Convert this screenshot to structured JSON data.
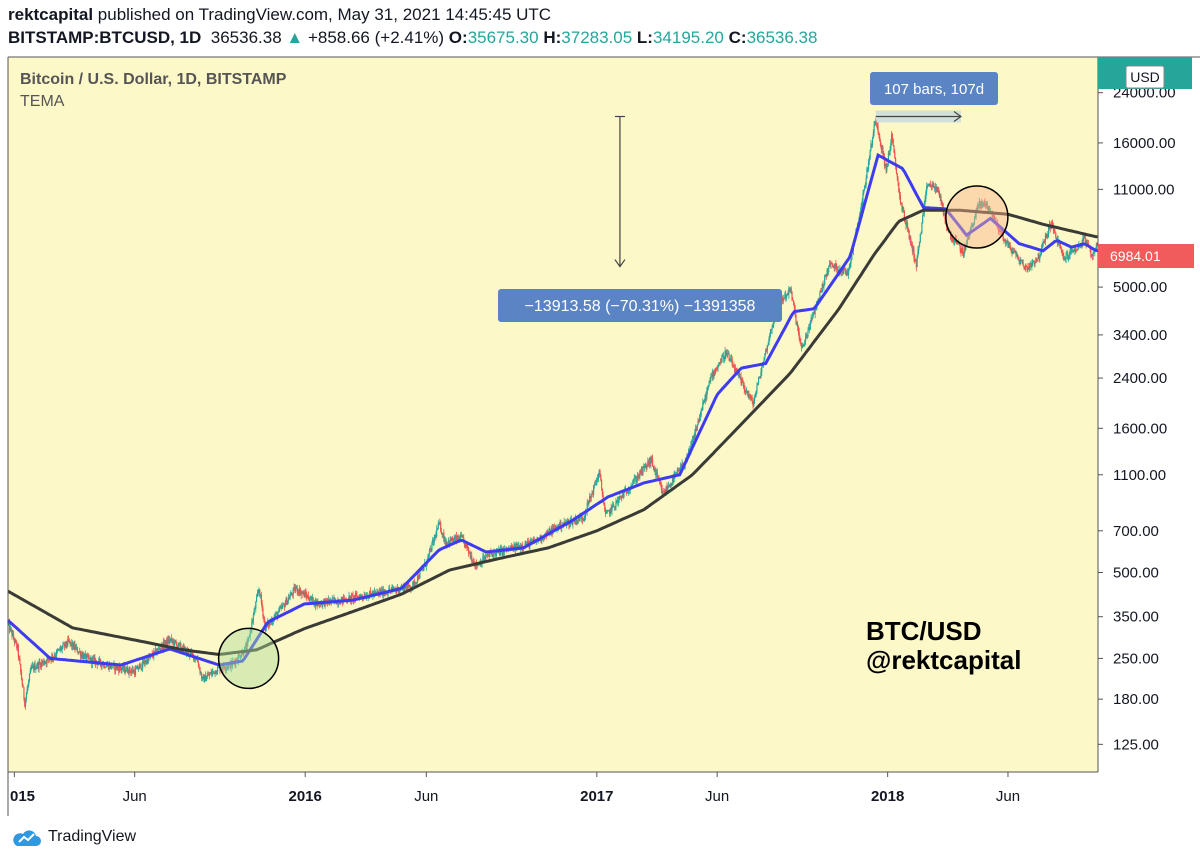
{
  "header": {
    "publisher": "rektcapital",
    "published_text": "published on TradingView.com, May 31, 2021 14:45:45 UTC",
    "symbol": "BITSTAMP:BTCUSD, 1D",
    "last": "36536.38",
    "change_arrow": "▲",
    "change": "+858.66 (+2.41%)",
    "o_label": "O:",
    "o_value": "35675.30",
    "h_label": "H:",
    "h_value": "37283.05",
    "l_label": "L:",
    "l_value": "34195.20",
    "c_label": "C:",
    "c_value": "36536.38"
  },
  "legend": {
    "title": "Bitcoin / U.S. Dollar, 1D, BITSTAMP",
    "indicator": "TEMA"
  },
  "overlay": {
    "line1": "BTC/USD",
    "line2": "@rektcapital"
  },
  "measure": {
    "bars_label": "107 bars, 107d",
    "drop_label": "−13913.58 (−70.31%) −1391358"
  },
  "price_badges": {
    "current": "6984.01",
    "currency": "USD"
  },
  "footer": {
    "brand": "TradingView"
  },
  "colors": {
    "background": "#fcf8c8",
    "up": "#26a69a",
    "down": "#ef5350",
    "tema_fast": "#3d3cf0",
    "tema_slow": "#3a3a36",
    "label_bg": "#5b84c4",
    "badge_red": "#f15b5b",
    "badge_green": "#26a69a"
  },
  "chart_data": {
    "type": "candlestick",
    "title": "Bitcoin / U.S. Dollar, 1D, BITSTAMP",
    "scale": "log",
    "y_ticks": [
      125,
      180,
      250,
      350,
      500,
      700,
      1100,
      1600,
      2400,
      3400,
      5000,
      11000,
      16000,
      24000
    ],
    "y_tick_labels": [
      "125.00",
      "180.00",
      "250.00",
      "350.00",
      "500.00",
      "700.00",
      "1100.00",
      "1600.00",
      "2400.00",
      "3400.00",
      "5000.00",
      "11000.00",
      "16000.00",
      "24000.00"
    ],
    "x_ticks": [
      {
        "date": "2015-01-01",
        "label": "015",
        "bold": true
      },
      {
        "date": "2015-06-01",
        "label": "Jun",
        "bold": false
      },
      {
        "date": "2016-01-01",
        "label": "2016",
        "bold": true
      },
      {
        "date": "2016-06-01",
        "label": "Jun",
        "bold": false
      },
      {
        "date": "2017-01-01",
        "label": "2017",
        "bold": true
      },
      {
        "date": "2017-06-01",
        "label": "Jun",
        "bold": false
      },
      {
        "date": "2018-01-01",
        "label": "2018",
        "bold": true
      },
      {
        "date": "2018-06-01",
        "label": "Jun",
        "bold": false
      }
    ],
    "x_range": [
      "2014-12-24",
      "2018-09-22"
    ],
    "y_range": [
      100,
      32000
    ],
    "price_path": [
      [
        "2014-12-24",
        330
      ],
      [
        "2015-01-05",
        270
      ],
      [
        "2015-01-14",
        175
      ],
      [
        "2015-01-22",
        230
      ],
      [
        "2015-02-15",
        250
      ],
      [
        "2015-03-10",
        285
      ],
      [
        "2015-04-01",
        250
      ],
      [
        "2015-05-01",
        235
      ],
      [
        "2015-06-01",
        225
      ],
      [
        "2015-07-05",
        275
      ],
      [
        "2015-07-15",
        290
      ],
      [
        "2015-08-18",
        250
      ],
      [
        "2015-08-25",
        210
      ],
      [
        "2015-09-15",
        232
      ],
      [
        "2015-10-01",
        238
      ],
      [
        "2015-10-20",
        275
      ],
      [
        "2015-11-04",
        440
      ],
      [
        "2015-11-12",
        320
      ],
      [
        "2015-12-01",
        370
      ],
      [
        "2015-12-20",
        440
      ],
      [
        "2016-01-15",
        390
      ],
      [
        "2016-02-15",
        400
      ],
      [
        "2016-03-15",
        415
      ],
      [
        "2016-04-15",
        430
      ],
      [
        "2016-05-15",
        450
      ],
      [
        "2016-06-01",
        540
      ],
      [
        "2016-06-17",
        740
      ],
      [
        "2016-06-25",
        640
      ],
      [
        "2016-07-15",
        660
      ],
      [
        "2016-08-02",
        530
      ],
      [
        "2016-08-20",
        580
      ],
      [
        "2016-09-15",
        605
      ],
      [
        "2016-10-15",
        640
      ],
      [
        "2016-11-15",
        730
      ],
      [
        "2016-12-15",
        780
      ],
      [
        "2017-01-04",
        1120
      ],
      [
        "2017-01-12",
        790
      ],
      [
        "2017-02-10",
        990
      ],
      [
        "2017-03-10",
        1240
      ],
      [
        "2017-03-25",
        940
      ],
      [
        "2017-04-25",
        1260
      ],
      [
        "2017-05-25",
        2450
      ],
      [
        "2017-06-12",
        2950
      ],
      [
        "2017-07-16",
        1950
      ],
      [
        "2017-08-15",
        4300
      ],
      [
        "2017-09-01",
        4900
      ],
      [
        "2017-09-15",
        3000
      ],
      [
        "2017-10-20",
        6000
      ],
      [
        "2017-11-12",
        5600
      ],
      [
        "2017-11-30",
        10000
      ],
      [
        "2017-12-17",
        19600
      ],
      [
        "2017-12-30",
        12800
      ],
      [
        "2018-01-06",
        16800
      ],
      [
        "2018-01-17",
        10000
      ],
      [
        "2018-02-06",
        6000
      ],
      [
        "2018-02-20",
        11500
      ],
      [
        "2018-03-05",
        11000
      ],
      [
        "2018-03-18",
        7800
      ],
      [
        "2018-04-06",
        6600
      ],
      [
        "2018-04-25",
        9700
      ],
      [
        "2018-05-05",
        9800
      ],
      [
        "2018-05-29",
        7200
      ],
      [
        "2018-06-24",
        5800
      ],
      [
        "2018-07-10",
        6400
      ],
      [
        "2018-07-25",
        8400
      ],
      [
        "2018-08-10",
        6300
      ],
      [
        "2018-08-30",
        7000
      ],
      [
        "2018-09-05",
        7400
      ],
      [
        "2018-09-14",
        6400
      ],
      [
        "2018-09-20",
        6984
      ]
    ],
    "series": [
      {
        "name": "TEMA (fast)",
        "color": "#3d3cf0",
        "points": [
          [
            "2014-12-24",
            340
          ],
          [
            "2015-02-15",
            250
          ],
          [
            "2015-05-15",
            237
          ],
          [
            "2015-07-15",
            270
          ],
          [
            "2015-09-15",
            237
          ],
          [
            "2015-10-15",
            245
          ],
          [
            "2015-11-15",
            335
          ],
          [
            "2015-12-31",
            388
          ],
          [
            "2016-03-01",
            400
          ],
          [
            "2016-05-01",
            440
          ],
          [
            "2016-06-17",
            600
          ],
          [
            "2016-07-15",
            650
          ],
          [
            "2016-08-15",
            590
          ],
          [
            "2016-10-01",
            610
          ],
          [
            "2016-12-01",
            760
          ],
          [
            "2017-01-15",
            920
          ],
          [
            "2017-03-01",
            1030
          ],
          [
            "2017-04-15",
            1100
          ],
          [
            "2017-06-01",
            2100
          ],
          [
            "2017-07-01",
            2600
          ],
          [
            "2017-08-01",
            2700
          ],
          [
            "2017-09-05",
            4100
          ],
          [
            "2017-10-01",
            4200
          ],
          [
            "2017-11-15",
            6400
          ],
          [
            "2017-12-20",
            14500
          ],
          [
            "2018-01-20",
            13000
          ],
          [
            "2018-02-15",
            9500
          ],
          [
            "2018-03-15",
            9400
          ],
          [
            "2018-04-10",
            7600
          ],
          [
            "2018-05-10",
            8700
          ],
          [
            "2018-06-15",
            7100
          ],
          [
            "2018-07-15",
            6700
          ],
          [
            "2018-08-01",
            7300
          ],
          [
            "2018-08-20",
            6900
          ],
          [
            "2018-09-05",
            7100
          ],
          [
            "2018-09-20",
            6700
          ]
        ]
      },
      {
        "name": "TEMA (slow)",
        "color": "#3a3a36",
        "points": [
          [
            "2014-12-24",
            430
          ],
          [
            "2015-03-15",
            320
          ],
          [
            "2015-06-01",
            290
          ],
          [
            "2015-08-01",
            268
          ],
          [
            "2015-09-15",
            258
          ],
          [
            "2015-11-01",
            268
          ],
          [
            "2015-12-31",
            318
          ],
          [
            "2016-03-01",
            365
          ],
          [
            "2016-05-01",
            420
          ],
          [
            "2016-06-30",
            510
          ],
          [
            "2016-09-01",
            560
          ],
          [
            "2016-11-01",
            610
          ],
          [
            "2017-01-01",
            700
          ],
          [
            "2017-03-01",
            830
          ],
          [
            "2017-05-01",
            1100
          ],
          [
            "2017-07-01",
            1650
          ],
          [
            "2017-09-01",
            2500
          ],
          [
            "2017-11-01",
            4200
          ],
          [
            "2017-12-15",
            6500
          ],
          [
            "2018-01-15",
            8500
          ],
          [
            "2018-02-15",
            9300
          ],
          [
            "2018-04-01",
            9300
          ],
          [
            "2018-06-01",
            9000
          ],
          [
            "2018-07-15",
            8300
          ],
          [
            "2018-09-20",
            7500
          ]
        ]
      }
    ],
    "annotations": {
      "green_circle": [
        "2015-10-22",
        250
      ],
      "orange_circle": [
        "2018-04-23",
        8800
      ],
      "drop_arrow": {
        "date": "2017-01-30",
        "from": 19800,
        "to": 5900
      },
      "bars_range": {
        "from": "2017-12-17",
        "to": "2018-04-03",
        "price": 19800
      }
    }
  }
}
